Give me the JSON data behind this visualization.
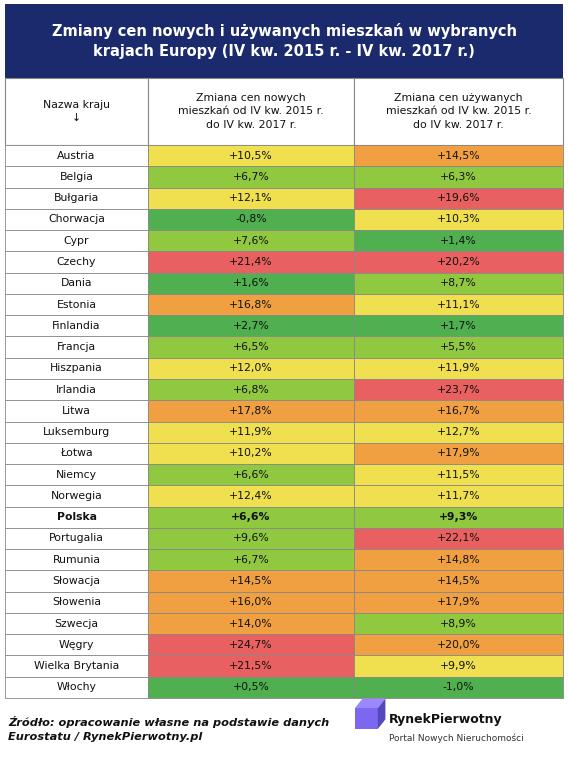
{
  "title": "Zmiany cen nowych i używanych mieszkań w wybranych\nkrajach Europy (IV kw. 2015 r. - IV kw. 2017 r.)",
  "col_headers": [
    "Nazwa kraju\n↓",
    "Zmiana cen nowych\nmieszkań od IV kw. 2015 r.\ndo IV kw. 2017 r.",
    "Zmiana cen używanych\nmieszkań od IV kw. 2015 r.\ndo IV kw. 2017 r."
  ],
  "countries": [
    "Austria",
    "Belgia",
    "Bułgaria",
    "Chorwacja",
    "Cypr",
    "Czechy",
    "Dania",
    "Estonia",
    "Finlandia",
    "Francja",
    "Hiszpania",
    "Irlandia",
    "Litwa",
    "Luksemburg",
    "Łotwa",
    "Niemcy",
    "Norwegia",
    "Polska",
    "Portugalia",
    "Rumunia",
    "Słowacja",
    "Słowenia",
    "Szwecja",
    "Węgry",
    "Wielka Brytania",
    "Włochy"
  ],
  "values_new": [
    "+10,5%",
    "+6,7%",
    "+12,1%",
    "-0,8%",
    "+7,6%",
    "+21,4%",
    "+1,6%",
    "+16,8%",
    "+2,7%",
    "+6,5%",
    "+12,0%",
    "+6,8%",
    "+17,8%",
    "+11,9%",
    "+10,2%",
    "+6,6%",
    "+12,4%",
    "+6,6%",
    "+9,6%",
    "+6,7%",
    "+14,5%",
    "+16,0%",
    "+14,0%",
    "+24,7%",
    "+21,5%",
    "+0,5%"
  ],
  "values_used": [
    "+14,5%",
    "+6,3%",
    "+19,6%",
    "+10,3%",
    "+1,4%",
    "+20,2%",
    "+8,7%",
    "+11,1%",
    "+1,7%",
    "+5,5%",
    "+11,9%",
    "+23,7%",
    "+16,7%",
    "+12,7%",
    "+17,9%",
    "+11,5%",
    "+11,7%",
    "+9,3%",
    "+22,1%",
    "+14,8%",
    "+14,5%",
    "+17,9%",
    "+8,9%",
    "+20,0%",
    "+9,9%",
    "-1,0%"
  ],
  "bold_rows": [
    17
  ],
  "colors_new": [
    "#f0e050",
    "#90c840",
    "#f0e050",
    "#50b050",
    "#90c840",
    "#e86060",
    "#50b050",
    "#f0a040",
    "#50b050",
    "#90c840",
    "#f0e050",
    "#90c840",
    "#f0a040",
    "#f0e050",
    "#f0e050",
    "#90c840",
    "#f0e050",
    "#90c840",
    "#90c840",
    "#90c840",
    "#f0a040",
    "#f0a040",
    "#f0a040",
    "#e86060",
    "#e86060",
    "#50b050"
  ],
  "colors_used": [
    "#f0a040",
    "#90c840",
    "#e86060",
    "#f0e050",
    "#50b050",
    "#e86060",
    "#90c840",
    "#f0e050",
    "#50b050",
    "#90c840",
    "#f0e050",
    "#e86060",
    "#f0a040",
    "#f0e050",
    "#f0a040",
    "#f0e050",
    "#f0e050",
    "#90c840",
    "#e86060",
    "#f0a040",
    "#f0a040",
    "#f0a040",
    "#90c840",
    "#f0a040",
    "#f0e050",
    "#50b050"
  ],
  "title_bg": "#1a2a6c",
  "title_color": "#ffffff",
  "source_text": "Źródło: opracowanie własne na podstawie danych\nEurostatu / RynekPierwotny.pl",
  "fig_width": 5.68,
  "fig_height": 7.6
}
